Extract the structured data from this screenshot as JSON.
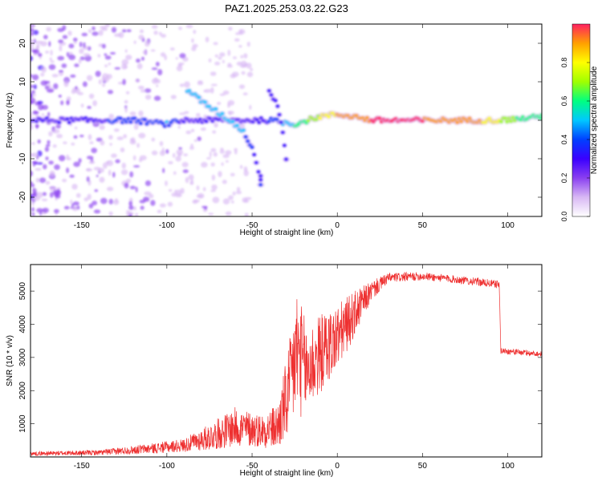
{
  "title": "PAZ1.2025.253.03.22.G23",
  "chart_data": [
    {
      "type": "heatmap",
      "xlabel": "Height of straight line (km)",
      "ylabel": "Frequency (Hz)",
      "xlim": [
        -180,
        120
      ],
      "ylim": [
        -25,
        25
      ],
      "xticks": [
        -150,
        -100,
        -50,
        0,
        50,
        100
      ],
      "yticks": [
        -20,
        -10,
        0,
        10,
        20
      ],
      "colorbar": {
        "label": "Normalized spectral amplitude",
        "range": [
          0,
          1
        ],
        "ticks": [
          0.0,
          0.2,
          0.4,
          0.6,
          0.8
        ],
        "colors": [
          "#ffffff",
          "#d8b8f4",
          "#8a3ff0",
          "#3a00ff",
          "#0040ff",
          "#00c8ff",
          "#00ff80",
          "#a0ff00",
          "#ffff00",
          "#ffa000",
          "#ff2060"
        ]
      },
      "features": [
        {
          "name": "carrier",
          "points": [
            [
              -180,
              0,
              0.25
            ],
            [
              -150,
              0,
              0.3
            ],
            [
              -120,
              0,
              0.4
            ],
            [
              -100,
              -1,
              0.45
            ],
            [
              -90,
              0,
              0.3
            ],
            [
              -60,
              0,
              0.3
            ],
            [
              -40,
              0,
              0.35
            ],
            [
              -25,
              -1,
              0.55
            ],
            [
              -10,
              1,
              0.75
            ],
            [
              0,
              1.5,
              0.85
            ],
            [
              10,
              1,
              0.85
            ],
            [
              20,
              0,
              0.95
            ],
            [
              50,
              0,
              0.95
            ],
            [
              80,
              0,
              0.9
            ],
            [
              95,
              0,
              0.75
            ],
            [
              110,
              0.5,
              0.6
            ],
            [
              120,
              1,
              0.6
            ]
          ]
        },
        {
          "name": "descending-branch",
          "points": [
            [
              -88,
              8,
              0.45
            ],
            [
              -80,
              5,
              0.5
            ],
            [
              -70,
              2,
              0.45
            ],
            [
              -60,
              -1,
              0.5
            ],
            [
              -55,
              -3,
              0.45
            ],
            [
              -50,
              -7,
              0.35
            ],
            [
              -45,
              -15,
              0.3
            ]
          ]
        },
        {
          "name": "secondary-branch",
          "points": [
            [
              -40,
              8,
              0.3
            ],
            [
              -35,
              4,
              0.3
            ],
            [
              -32,
              -3,
              0.25
            ],
            [
              -30,
              -10,
              0.25
            ]
          ]
        },
        {
          "name": "spot",
          "points": [
            [
              -45,
              -17,
              0.35
            ]
          ]
        }
      ]
    },
    {
      "type": "line",
      "xlabel": "Height of straight line (km)",
      "ylabel": "SNR (10 * v/v)",
      "xlim": [
        -180,
        120
      ],
      "ylim": [
        0,
        5800
      ],
      "xticks": [
        -150,
        -100,
        -50,
        0,
        50,
        100
      ],
      "yticks": [
        1000,
        2000,
        3000,
        4000,
        5000
      ],
      "color": "#ee3030",
      "envelope": [
        {
          "x": -180,
          "y": 100,
          "noise": 60
        },
        {
          "x": -140,
          "y": 130,
          "noise": 80
        },
        {
          "x": -110,
          "y": 250,
          "noise": 150
        },
        {
          "x": -90,
          "y": 350,
          "noise": 200
        },
        {
          "x": -75,
          "y": 600,
          "noise": 400
        },
        {
          "x": -60,
          "y": 900,
          "noise": 600
        },
        {
          "x": -45,
          "y": 800,
          "noise": 500
        },
        {
          "x": -35,
          "y": 900,
          "noise": 700
        },
        {
          "x": -28,
          "y": 2000,
          "noise": 1500
        },
        {
          "x": -24,
          "y": 3200,
          "noise": 2000
        },
        {
          "x": -18,
          "y": 2600,
          "noise": 1400
        },
        {
          "x": -10,
          "y": 3100,
          "noise": 1200
        },
        {
          "x": 0,
          "y": 3600,
          "noise": 1000
        },
        {
          "x": 10,
          "y": 4300,
          "noise": 700
        },
        {
          "x": 20,
          "y": 5000,
          "noise": 300
        },
        {
          "x": 30,
          "y": 5400,
          "noise": 150
        },
        {
          "x": 50,
          "y": 5450,
          "noise": 120
        },
        {
          "x": 70,
          "y": 5350,
          "noise": 120
        },
        {
          "x": 95,
          "y": 5200,
          "noise": 120
        },
        {
          "x": 96,
          "y": 3200,
          "noise": 100
        },
        {
          "x": 120,
          "y": 3100,
          "noise": 80
        }
      ]
    }
  ]
}
